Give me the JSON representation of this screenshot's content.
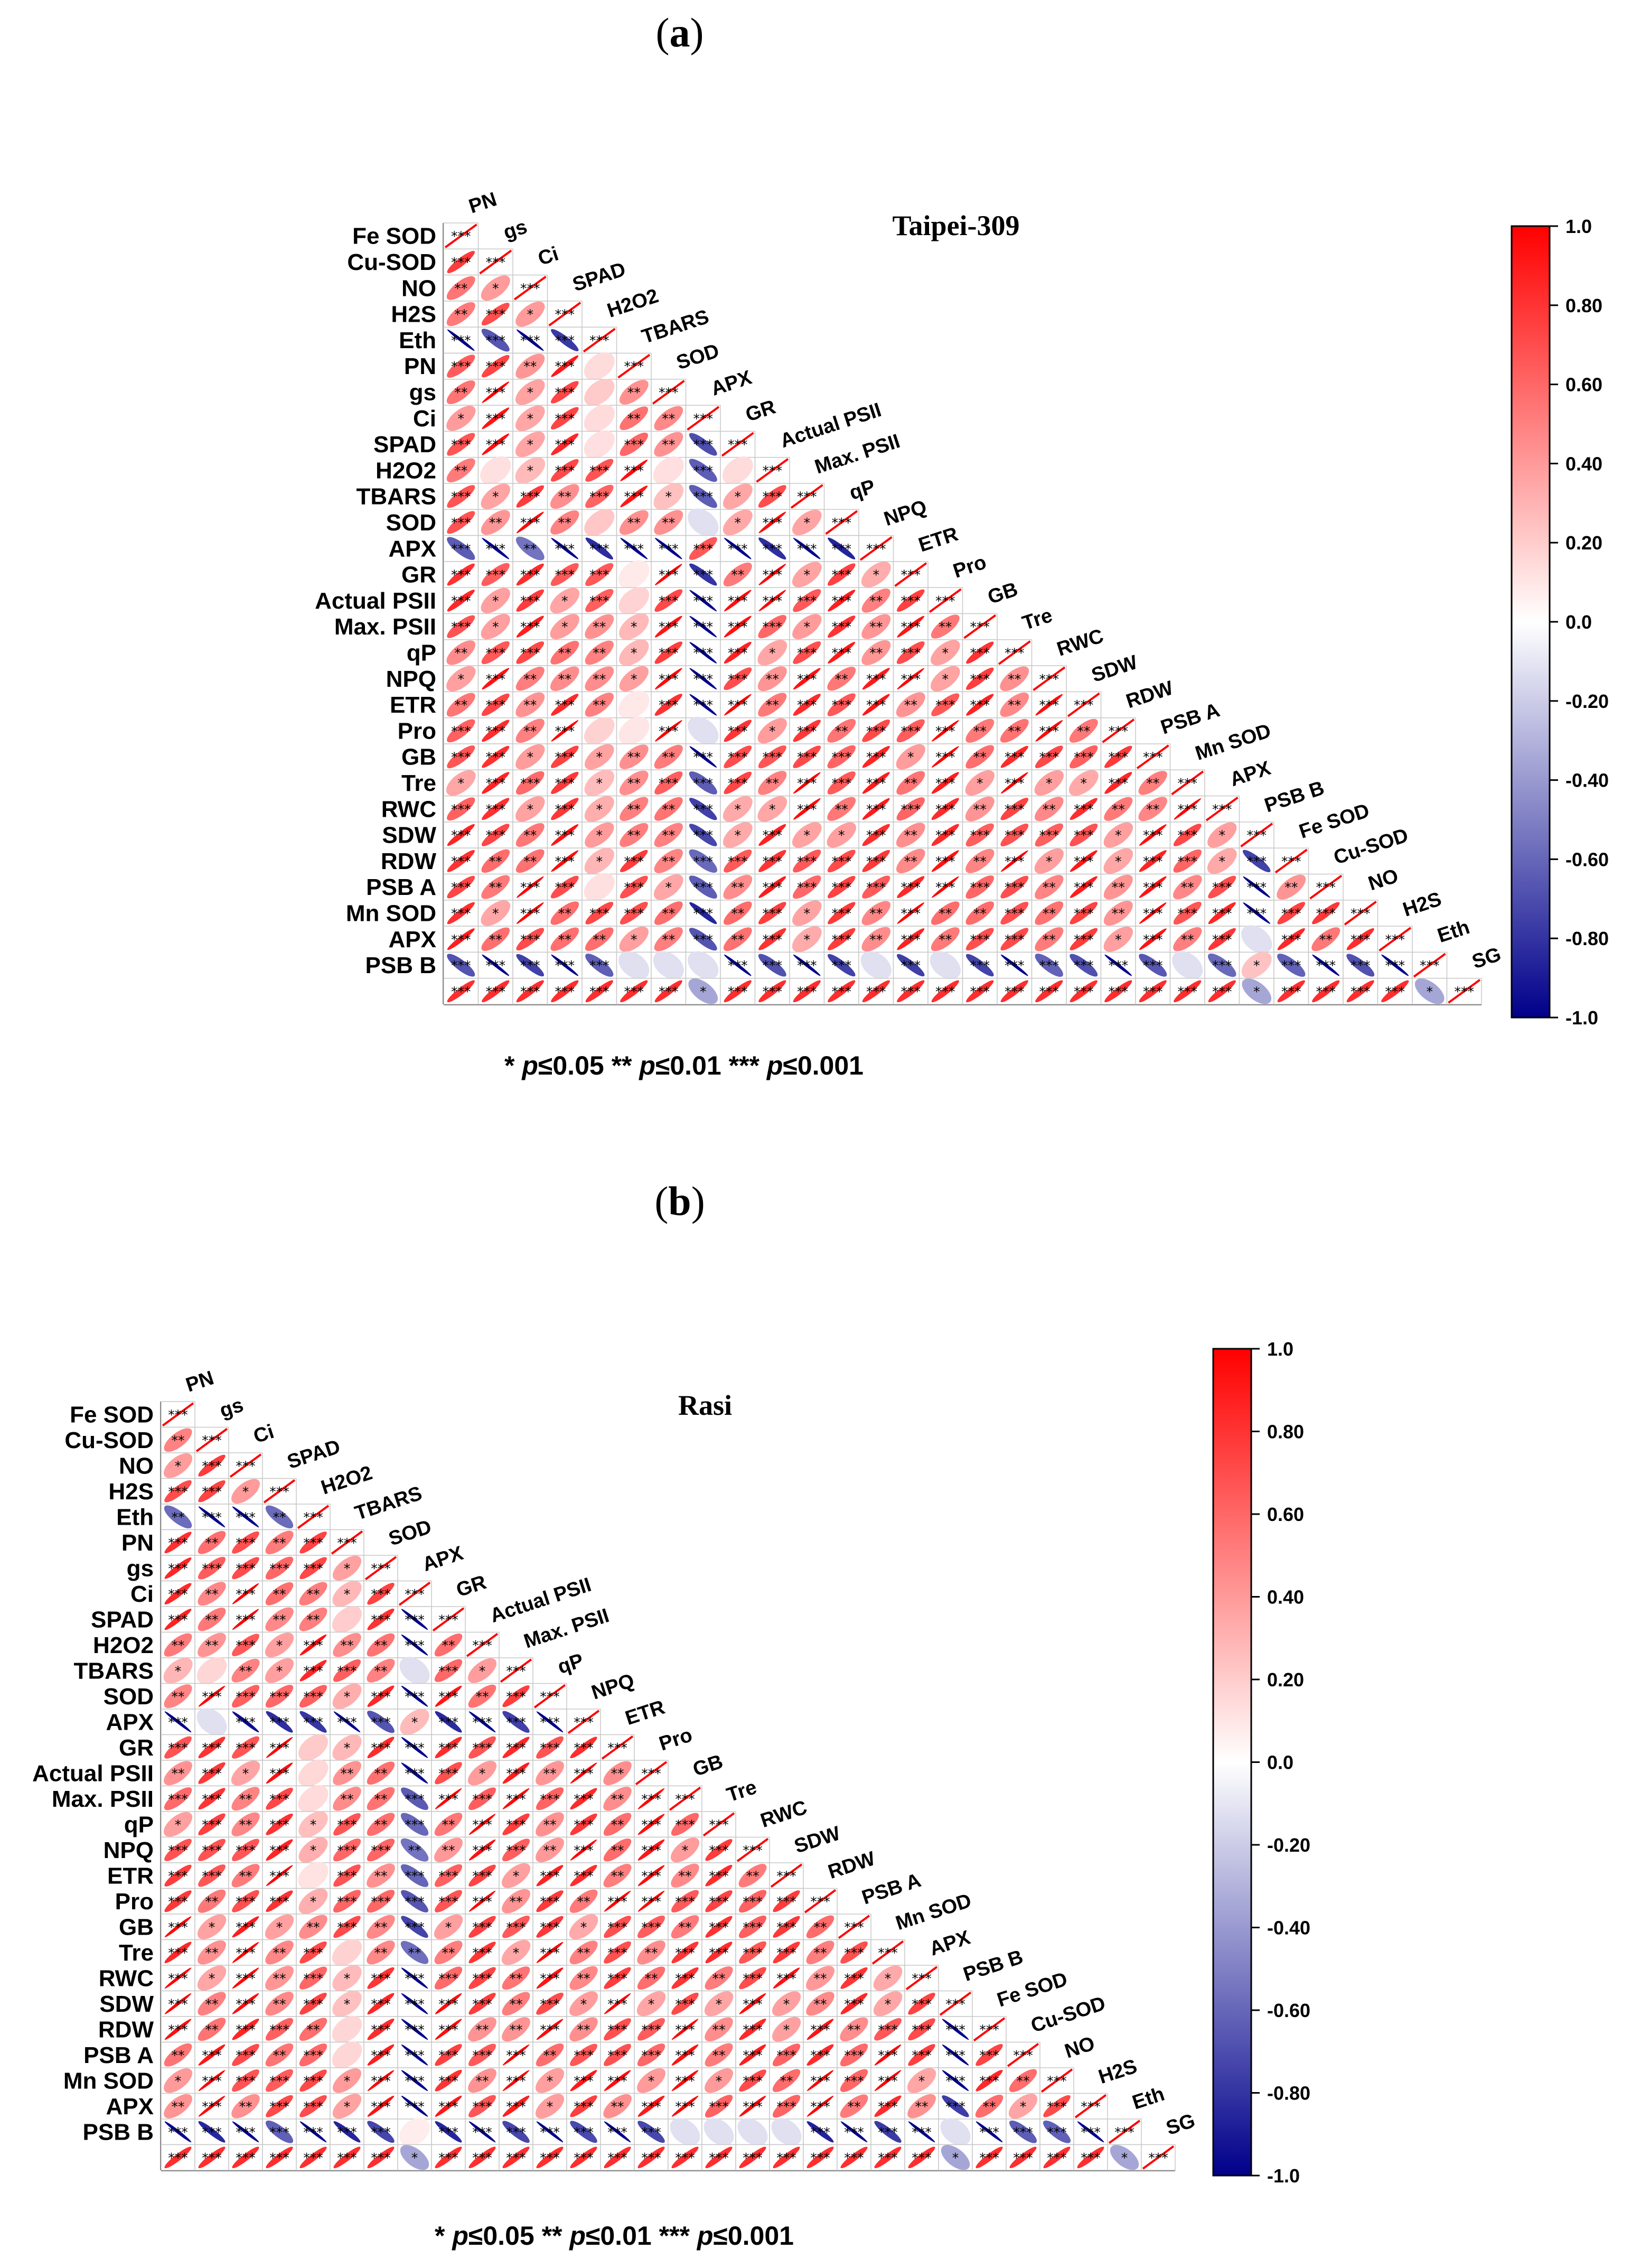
{
  "figure": {
    "panel_labels": [
      "a",
      "b"
    ],
    "significance_note": {
      "s1": "* ",
      "p1": "p",
      "t1": "≤0.05  ",
      "s2": "** ",
      "p2": "p",
      "t2": "≤0.01  ",
      "s3": "*** ",
      "p3": "p",
      "t3": "≤0.001"
    }
  },
  "colorbar": {
    "ticks": [
      "1.0",
      "0.80",
      "0.60",
      "0.40",
      "0.20",
      "0.0",
      "-0.20",
      "-0.40",
      "-0.60",
      "-0.80",
      "-1.0"
    ],
    "colors": {
      "neg": "#00008b",
      "zero": "#ffffff",
      "pos": "#ff0000"
    }
  },
  "chart_data": [
    {
      "type": "heatmap",
      "title": "Taipei-309",
      "row_labels": [
        "Fe SOD",
        "Cu-SOD",
        "NO",
        "H2S",
        "Eth",
        "PN",
        "gs",
        "Ci",
        "SPAD",
        "H2O2",
        "TBARS",
        "SOD",
        "APX",
        "GR",
        "Actual PSII",
        "Max. PSII",
        "qP",
        "NPQ",
        "ETR",
        "Pro",
        "GB",
        "Tre",
        "RWC",
        "SDW",
        "RDW",
        "PSB A",
        "Mn SOD",
        "APX",
        "PSB B"
      ],
      "col_labels": [
        "PN",
        "gs",
        "Ci",
        "SPAD",
        "H2O2",
        "TBARS",
        "SOD",
        "APX",
        "GR",
        "Actual PSII",
        "Max. PSII",
        "qP",
        "NPQ",
        "ETR",
        "Pro",
        "GB",
        "Tre",
        "RWC",
        "SDW",
        "RDW",
        "PSB A",
        "Mn SOD",
        "APX",
        "PSB B",
        "Fe SOD",
        "Cu-SOD",
        "NO",
        "H2S",
        "Eth",
        "SG"
      ],
      "value_range": [
        -1.0,
        1.0
      ],
      "correlation_shape": "ellipse",
      "significance_levels": [
        "*",
        "**",
        "***"
      ]
    },
    {
      "type": "heatmap",
      "title": "Rasi",
      "row_labels": [
        "Fe SOD",
        "Cu-SOD",
        "NO",
        "H2S",
        "Eth",
        "PN",
        "gs",
        "Ci",
        "SPAD",
        "H2O2",
        "TBARS",
        "SOD",
        "APX",
        "GR",
        "Actual PSII",
        "Max. PSII",
        "qP",
        "NPQ",
        "ETR",
        "Pro",
        "GB",
        "Tre",
        "RWC",
        "SDW",
        "RDW",
        "PSB A",
        "Mn SOD",
        "APX",
        "PSB B"
      ],
      "col_labels": [
        "PN",
        "gs",
        "Ci",
        "SPAD",
        "H2O2",
        "TBARS",
        "SOD",
        "APX",
        "GR",
        "Actual PSII",
        "Max. PSII",
        "qP",
        "NPQ",
        "ETR",
        "Pro",
        "GB",
        "Tre",
        "RWC",
        "SDW",
        "RDW",
        "PSB A",
        "Mn SOD",
        "APX",
        "PSB B",
        "Fe SOD",
        "Cu-SOD",
        "NO",
        "H2S",
        "Eth",
        "SG"
      ],
      "value_range": [
        -1.0,
        1.0
      ],
      "correlation_shape": "ellipse",
      "significance_levels": [
        "*",
        "**",
        "***"
      ]
    }
  ]
}
